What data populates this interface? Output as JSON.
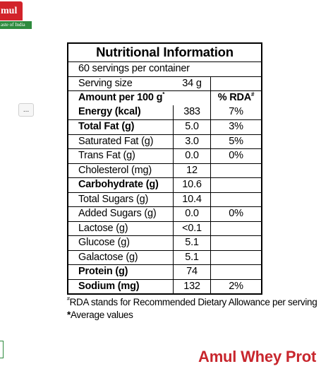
{
  "logo": {
    "brand": "mul",
    "tagline": "aste of India"
  },
  "more_button": {
    "label": "..."
  },
  "table": {
    "title": "Nutritional Information",
    "servings_per_container": "60 servings per container",
    "serving_size_label": "Serving size",
    "serving_size_value": "34 g",
    "amount_header": "Amount per 100 g",
    "amount_marker": "*",
    "rda_header": "% RDA",
    "rda_marker": "#",
    "rows": [
      {
        "name": "Energy (kcal)",
        "value": "383",
        "rda": "7%",
        "bold": true
      },
      {
        "name": "Total Fat (g)",
        "value": "5.0",
        "rda": "3%",
        "bold": true
      },
      {
        "name": "Saturated Fat (g)",
        "value": "3.0",
        "rda": "5%",
        "bold": false
      },
      {
        "name": "Trans Fat (g)",
        "value": "0.0",
        "rda": "0%",
        "bold": false
      },
      {
        "name": "Cholesterol (mg)",
        "value": "12",
        "rda": "",
        "bold": false
      },
      {
        "name": "Carbohydrate (g)",
        "value": "10.6",
        "rda": "",
        "bold": true
      },
      {
        "name": "Total Sugars (g)",
        "value": "10.4",
        "rda": "",
        "bold": false
      },
      {
        "name": "Added Sugars (g)",
        "value": "0.0",
        "rda": "0%",
        "bold": false
      },
      {
        "name": "Lactose (g)",
        "value": "<0.1",
        "rda": "",
        "bold": false
      },
      {
        "name": "Glucose (g)",
        "value": "5.1",
        "rda": "",
        "bold": false
      },
      {
        "name": "Galactose (g)",
        "value": "5.1",
        "rda": "",
        "bold": false
      },
      {
        "name": "Protein (g)",
        "value": "74",
        "rda": "",
        "bold": true
      },
      {
        "name": "Sodium (mg)",
        "value": "132",
        "rda": "2%",
        "bold": true
      }
    ]
  },
  "notes": {
    "rda_marker": "#",
    "rda_note": "RDA stands for Recommended Dietary Allowance per serving",
    "avg_marker": "*",
    "avg_note": "Average values"
  },
  "footer": {
    "product_name": "Amul Whey Prot"
  }
}
